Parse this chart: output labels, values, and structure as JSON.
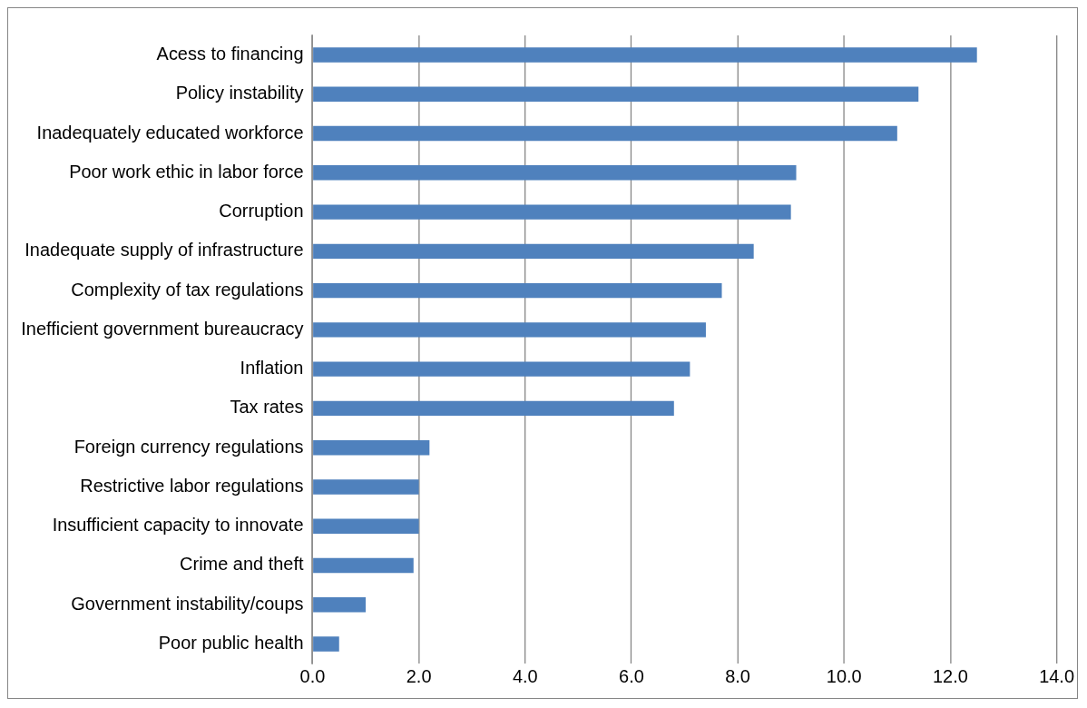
{
  "chart_data": {
    "type": "bar",
    "orientation": "horizontal",
    "categories": [
      "Acess to financing",
      "Policy instability",
      "Inadequately educated workforce",
      "Poor work ethic in labor force",
      "Corruption",
      "Inadequate supply of infrastructure",
      "Complexity of tax regulations",
      "Inefficient government bureaucracy",
      "Inflation",
      "Tax rates",
      "Foreign currency regulations",
      "Restrictive labor regulations",
      "Insufficient capacity to innovate",
      "Crime and theft",
      "Government instability/coups",
      "Poor public health"
    ],
    "values": [
      12.5,
      11.4,
      11.0,
      9.1,
      9.0,
      8.3,
      7.7,
      7.4,
      7.1,
      6.8,
      2.2,
      2.0,
      2.0,
      1.9,
      1.0,
      0.5
    ],
    "color": "#4f81bd",
    "xlim": [
      0,
      14
    ],
    "xticks": [
      {
        "value": 0,
        "label": "0.0"
      },
      {
        "value": 2,
        "label": "2.0"
      },
      {
        "value": 4,
        "label": "4.0"
      },
      {
        "value": 6,
        "label": "6.0"
      },
      {
        "value": 8,
        "label": "8.0"
      },
      {
        "value": 10,
        "label": "10.0"
      },
      {
        "value": 12,
        "label": "12.0"
      },
      {
        "value": 14,
        "label": "14.0"
      }
    ],
    "grid": "x",
    "legend": false
  }
}
